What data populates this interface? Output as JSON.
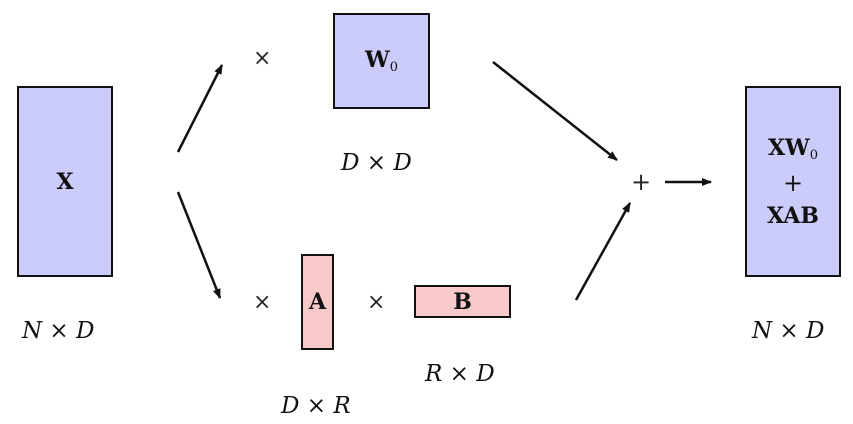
{
  "colors": {
    "matrix_blue": "#ccccfb",
    "matrix_pink": "#f8c9c9",
    "stroke": "#111111"
  },
  "matrices": {
    "x": {
      "label": "X",
      "dims": "N × D"
    },
    "w0": {
      "label": "W",
      "subscript": "0",
      "dims": "D × D"
    },
    "a": {
      "label": "A",
      "dims": "D × R"
    },
    "b": {
      "label": "B",
      "dims": "R × D"
    },
    "output": {
      "line1": "XW",
      "line1_subscript": "0",
      "plus": "+",
      "line3": "XAB",
      "dims": "N × D"
    }
  },
  "operators": {
    "times_w0": "×",
    "times_a": "×",
    "times_b": "×",
    "sum": "+"
  }
}
